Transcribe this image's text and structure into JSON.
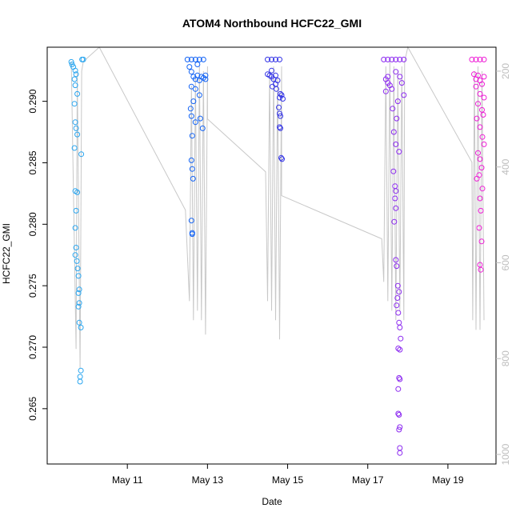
{
  "chart_data": {
    "type": "scatter",
    "title": "ATOM4 Northbound HCFC22_GMI",
    "xlabel": "Date",
    "ylabel": "HCFC22_GMI",
    "x_tick_labels": [
      "May 11",
      "May 13",
      "May 15",
      "May 17",
      "May 19"
    ],
    "x_tick_values": [
      11,
      13,
      15,
      17,
      19
    ],
    "xlim": [
      9.0,
      20.2
    ],
    "ylim": [
      0.2605,
      0.2944
    ],
    "y_ticks": [
      0.265,
      0.27,
      0.275,
      0.28,
      0.285,
      0.29
    ],
    "y_tick_labels": [
      "0.265",
      "0.270",
      "0.275",
      "0.280",
      "0.285",
      "0.290"
    ],
    "secondary_axis": {
      "label": "",
      "ticks": [
        200,
        400,
        600,
        800,
        1000
      ],
      "tick_labels": [
        "200",
        "400",
        "600",
        "800",
        "1000"
      ],
      "lim": [
        1020,
        150
      ],
      "color": "#bdbdbd",
      "description": "pressure (inverted)"
    },
    "series": [
      {
        "color": "#2aa6f0",
        "values": [
          [
            9.6,
            0.2932
          ],
          [
            9.62,
            0.293
          ],
          [
            9.65,
            0.2928
          ],
          [
            9.7,
            0.2925
          ],
          [
            9.72,
            0.2922
          ],
          [
            9.68,
            0.2918
          ],
          [
            9.7,
            0.2913
          ],
          [
            9.75,
            0.2906
          ],
          [
            9.68,
            0.2898
          ],
          [
            9.7,
            0.2883
          ],
          [
            9.72,
            0.2878
          ],
          [
            9.75,
            0.2873
          ],
          [
            9.68,
            0.2862
          ],
          [
            9.85,
            0.2857
          ],
          [
            9.7,
            0.2827
          ],
          [
            9.75,
            0.2826
          ],
          [
            9.72,
            0.2811
          ],
          [
            9.7,
            0.2797
          ],
          [
            9.72,
            0.2781
          ],
          [
            9.7,
            0.2775
          ],
          [
            9.74,
            0.277
          ],
          [
            9.76,
            0.2764
          ],
          [
            9.78,
            0.2758
          ],
          [
            9.8,
            0.2747
          ],
          [
            9.78,
            0.2744
          ],
          [
            9.8,
            0.2736
          ],
          [
            9.78,
            0.2733
          ],
          [
            9.8,
            0.272
          ],
          [
            9.84,
            0.2716
          ],
          [
            9.84,
            0.2681
          ],
          [
            9.82,
            0.2676
          ],
          [
            9.82,
            0.2672
          ],
          [
            9.87,
            0.2934
          ],
          [
            9.9,
            0.2934
          ]
        ]
      },
      {
        "color": "#1464f5",
        "values": [
          [
            12.5,
            0.2934
          ],
          [
            12.6,
            0.2934
          ],
          [
            12.7,
            0.2934
          ],
          [
            12.8,
            0.2934
          ],
          [
            12.9,
            0.2934
          ],
          [
            12.55,
            0.2928
          ],
          [
            12.6,
            0.2924
          ],
          [
            12.65,
            0.292
          ],
          [
            12.7,
            0.2918
          ],
          [
            12.75,
            0.2921
          ],
          [
            12.8,
            0.2917
          ],
          [
            12.85,
            0.292
          ],
          [
            12.9,
            0.2919
          ],
          [
            12.95,
            0.2921
          ],
          [
            12.6,
            0.2912
          ],
          [
            12.7,
            0.291
          ],
          [
            12.8,
            0.2905
          ],
          [
            12.65,
            0.29
          ],
          [
            12.58,
            0.2894
          ],
          [
            12.6,
            0.2888
          ],
          [
            12.7,
            0.2883
          ],
          [
            12.82,
            0.2886
          ],
          [
            12.88,
            0.2878
          ],
          [
            12.62,
            0.2872
          ],
          [
            12.6,
            0.2852
          ],
          [
            12.62,
            0.2845
          ],
          [
            12.64,
            0.2837
          ],
          [
            12.6,
            0.2803
          ],
          [
            12.62,
            0.2793
          ],
          [
            12.62,
            0.2792
          ],
          [
            12.75,
            0.293
          ],
          [
            12.95,
            0.2918
          ]
        ]
      },
      {
        "color": "#3434e6",
        "values": [
          [
            14.5,
            0.2934
          ],
          [
            14.6,
            0.2934
          ],
          [
            14.7,
            0.2934
          ],
          [
            14.8,
            0.2934
          ],
          [
            14.5,
            0.2922
          ],
          [
            14.55,
            0.2921
          ],
          [
            14.6,
            0.292
          ],
          [
            14.65,
            0.2918
          ],
          [
            14.7,
            0.2921
          ],
          [
            14.75,
            0.2917
          ],
          [
            14.62,
            0.2912
          ],
          [
            14.72,
            0.291
          ],
          [
            14.82,
            0.2906
          ],
          [
            14.8,
            0.2903
          ],
          [
            14.85,
            0.2905
          ],
          [
            14.88,
            0.2902
          ],
          [
            14.6,
            0.2925
          ],
          [
            14.7,
            0.2914
          ],
          [
            14.78,
            0.2895
          ],
          [
            14.8,
            0.289
          ],
          [
            14.82,
            0.2888
          ],
          [
            14.8,
            0.2879
          ],
          [
            14.82,
            0.2878
          ],
          [
            14.86,
            0.2853
          ],
          [
            14.84,
            0.2854
          ]
        ]
      },
      {
        "color": "#8c2af0",
        "values": [
          [
            17.4,
            0.2934
          ],
          [
            17.5,
            0.2934
          ],
          [
            17.6,
            0.2934
          ],
          [
            17.7,
            0.2934
          ],
          [
            17.8,
            0.2934
          ],
          [
            17.9,
            0.2934
          ],
          [
            17.45,
            0.2918
          ],
          [
            17.5,
            0.2915
          ],
          [
            17.55,
            0.2913
          ],
          [
            17.6,
            0.291
          ],
          [
            17.45,
            0.2908
          ],
          [
            17.5,
            0.292
          ],
          [
            17.7,
            0.2924
          ],
          [
            17.8,
            0.292
          ],
          [
            17.85,
            0.2915
          ],
          [
            17.9,
            0.2905
          ],
          [
            17.75,
            0.29
          ],
          [
            17.62,
            0.2894
          ],
          [
            17.72,
            0.2886
          ],
          [
            17.65,
            0.2875
          ],
          [
            17.7,
            0.2865
          ],
          [
            17.78,
            0.2859
          ],
          [
            17.64,
            0.2843
          ],
          [
            17.68,
            0.2831
          ],
          [
            17.7,
            0.2827
          ],
          [
            17.68,
            0.2821
          ],
          [
            17.7,
            0.2813
          ],
          [
            17.66,
            0.2802
          ],
          [
            17.7,
            0.2771
          ],
          [
            17.72,
            0.2766
          ],
          [
            17.75,
            0.275
          ],
          [
            17.78,
            0.2745
          ],
          [
            17.74,
            0.274
          ],
          [
            17.72,
            0.2734
          ],
          [
            17.76,
            0.2728
          ],
          [
            17.78,
            0.272
          ],
          [
            17.8,
            0.2716
          ],
          [
            17.82,
            0.2707
          ],
          [
            17.76,
            0.2699
          ],
          [
            17.8,
            0.2698
          ],
          [
            17.78,
            0.2675
          ],
          [
            17.8,
            0.2674
          ],
          [
            17.76,
            0.2666
          ],
          [
            17.76,
            0.2646
          ],
          [
            17.78,
            0.2645
          ],
          [
            17.8,
            0.2635
          ],
          [
            17.78,
            0.2633
          ],
          [
            17.8,
            0.2618
          ],
          [
            17.8,
            0.2614
          ]
        ]
      },
      {
        "color": "#ee1ed6",
        "values": [
          [
            19.6,
            0.2934
          ],
          [
            19.7,
            0.2934
          ],
          [
            19.8,
            0.2934
          ],
          [
            19.9,
            0.2934
          ],
          [
            19.65,
            0.2922
          ],
          [
            19.7,
            0.2918
          ],
          [
            19.75,
            0.2921
          ],
          [
            19.8,
            0.2917
          ],
          [
            19.85,
            0.2914
          ],
          [
            19.9,
            0.292
          ],
          [
            19.7,
            0.2912
          ],
          [
            19.8,
            0.2906
          ],
          [
            19.9,
            0.2903
          ],
          [
            19.75,
            0.2898
          ],
          [
            19.85,
            0.2893
          ],
          [
            19.72,
            0.2886
          ],
          [
            19.88,
            0.2889
          ],
          [
            19.8,
            0.2879
          ],
          [
            19.86,
            0.2871
          ],
          [
            19.9,
            0.2865
          ],
          [
            19.75,
            0.2858
          ],
          [
            19.8,
            0.2853
          ],
          [
            19.84,
            0.2846
          ],
          [
            19.78,
            0.284
          ],
          [
            19.72,
            0.2837
          ],
          [
            19.86,
            0.2829
          ],
          [
            19.8,
            0.2821
          ],
          [
            19.82,
            0.2811
          ],
          [
            19.78,
            0.2797
          ],
          [
            19.84,
            0.2786
          ],
          [
            19.8,
            0.2767
          ],
          [
            19.82,
            0.2763
          ]
        ]
      }
    ],
    "profile_line": {
      "color": "#c8c8c8",
      "description": "secondary-axis profile trace (pressure)",
      "points": [
        [
          9.6,
          180
        ],
        [
          9.72,
          780
        ],
        [
          9.75,
          200
        ],
        [
          9.82,
          820
        ],
        [
          9.86,
          200
        ],
        [
          9.9,
          180
        ],
        [
          10.3,
          150
        ],
        [
          12.45,
          490
        ],
        [
          12.55,
          680
        ],
        [
          12.6,
          230
        ],
        [
          12.65,
          720
        ],
        [
          12.7,
          210
        ],
        [
          12.75,
          700
        ],
        [
          12.8,
          190
        ],
        [
          12.85,
          720
        ],
        [
          12.9,
          200
        ],
        [
          12.95,
          750
        ],
        [
          13.0,
          190
        ],
        [
          13.0,
          300
        ],
        [
          14.45,
          410
        ],
        [
          14.5,
          680
        ],
        [
          14.55,
          200
        ],
        [
          14.6,
          700
        ],
        [
          14.65,
          190
        ],
        [
          14.7,
          720
        ],
        [
          14.75,
          210
        ],
        [
          14.8,
          760
        ],
        [
          14.85,
          190
        ],
        [
          14.85,
          460
        ],
        [
          17.35,
          550
        ],
        [
          17.4,
          640
        ],
        [
          17.45,
          190
        ],
        [
          17.5,
          680
        ],
        [
          17.55,
          180
        ],
        [
          17.6,
          700
        ],
        [
          17.65,
          190
        ],
        [
          17.7,
          720
        ],
        [
          17.75,
          200
        ],
        [
          17.8,
          700
        ],
        [
          17.85,
          190
        ],
        [
          17.9,
          720
        ],
        [
          17.92,
          180
        ],
        [
          18.0,
          150
        ],
        [
          19.6,
          390
        ],
        [
          19.62,
          720
        ],
        [
          19.66,
          200
        ],
        [
          19.7,
          740
        ],
        [
          19.75,
          190
        ],
        [
          19.8,
          740
        ],
        [
          19.85,
          200
        ],
        [
          19.9,
          720
        ]
      ]
    },
    "grid": false,
    "legend": "none"
  }
}
